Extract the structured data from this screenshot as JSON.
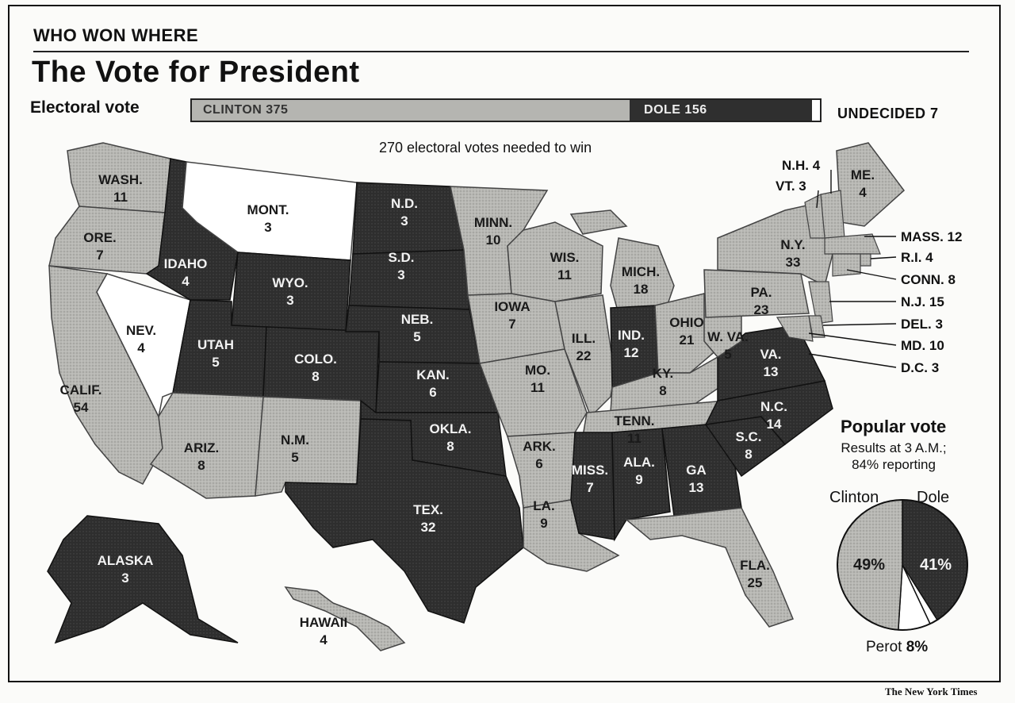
{
  "header": {
    "kicker": "WHO WON WHERE",
    "title": "The Vote for President"
  },
  "electoral_vote": {
    "label": "Electoral vote",
    "needed_note": "270 electoral votes needed to win",
    "clinton_label": "CLINTON 375",
    "dole_label": "DOLE 156",
    "undecided_label": "UNDECIDED 7",
    "clinton_votes": 375,
    "dole_votes": 156,
    "undecided_votes": 7,
    "colors": {
      "clinton": "#b5b5b1",
      "dole": "#2f2f2f",
      "undecided": "#ffffff"
    }
  },
  "states": [
    {
      "id": "wa",
      "label": "WASH.",
      "ev": "11",
      "winner": "clinton"
    },
    {
      "id": "or",
      "label": "ORE.",
      "ev": "7",
      "winner": "clinton"
    },
    {
      "id": "ca",
      "label": "CALIF.",
      "ev": "54",
      "winner": "clinton"
    },
    {
      "id": "nv",
      "label": "NEV.",
      "ev": "4",
      "winner": "undecided"
    },
    {
      "id": "id",
      "label": "IDAHO",
      "ev": "4",
      "winner": "dole"
    },
    {
      "id": "mt",
      "label": "MONT.",
      "ev": "3",
      "winner": "undecided"
    },
    {
      "id": "wy",
      "label": "WYO.",
      "ev": "3",
      "winner": "dole"
    },
    {
      "id": "ut",
      "label": "UTAH",
      "ev": "5",
      "winner": "dole"
    },
    {
      "id": "co",
      "label": "COLO.",
      "ev": "8",
      "winner": "dole"
    },
    {
      "id": "az",
      "label": "ARIZ.",
      "ev": "8",
      "winner": "clinton"
    },
    {
      "id": "nm",
      "label": "N.M.",
      "ev": "5",
      "winner": "clinton"
    },
    {
      "id": "nd",
      "label": "N.D.",
      "ev": "3",
      "winner": "dole"
    },
    {
      "id": "sd",
      "label": "S.D.",
      "ev": "3",
      "winner": "dole"
    },
    {
      "id": "ne",
      "label": "NEB.",
      "ev": "5",
      "winner": "dole"
    },
    {
      "id": "ks",
      "label": "KAN.",
      "ev": "6",
      "winner": "dole"
    },
    {
      "id": "ok",
      "label": "OKLA.",
      "ev": "8",
      "winner": "dole"
    },
    {
      "id": "tx",
      "label": "TEX.",
      "ev": "32",
      "winner": "dole"
    },
    {
      "id": "mn",
      "label": "MINN.",
      "ev": "10",
      "winner": "clinton"
    },
    {
      "id": "ia",
      "label": "IOWA",
      "ev": "7",
      "winner": "clinton"
    },
    {
      "id": "mo",
      "label": "MO.",
      "ev": "11",
      "winner": "clinton"
    },
    {
      "id": "ar",
      "label": "ARK.",
      "ev": "6",
      "winner": "clinton"
    },
    {
      "id": "la",
      "label": "LA.",
      "ev": "9",
      "winner": "clinton"
    },
    {
      "id": "wi",
      "label": "WIS.",
      "ev": "11",
      "winner": "clinton"
    },
    {
      "id": "il",
      "label": "ILL.",
      "ev": "22",
      "winner": "clinton"
    },
    {
      "id": "mi",
      "label": "MICH.",
      "ev": "18",
      "winner": "clinton"
    },
    {
      "id": "in",
      "label": "IND.",
      "ev": "12",
      "winner": "dole"
    },
    {
      "id": "oh",
      "label": "OHIO",
      "ev": "21",
      "winner": "clinton"
    },
    {
      "id": "ky",
      "label": "KY.",
      "ev": "8",
      "winner": "clinton"
    },
    {
      "id": "tn",
      "label": "TENN.",
      "ev": "11",
      "winner": "clinton"
    },
    {
      "id": "ms",
      "label": "MISS.",
      "ev": "7",
      "winner": "dole"
    },
    {
      "id": "al",
      "label": "ALA.",
      "ev": "9",
      "winner": "dole"
    },
    {
      "id": "ga",
      "label": "GA",
      "ev": "13",
      "winner": "dole"
    },
    {
      "id": "fl",
      "label": "FLA.",
      "ev": "25",
      "winner": "clinton"
    },
    {
      "id": "sc",
      "label": "S.C.",
      "ev": "8",
      "winner": "dole"
    },
    {
      "id": "nc",
      "label": "N.C.",
      "ev": "14",
      "winner": "dole"
    },
    {
      "id": "va",
      "label": "VA.",
      "ev": "13",
      "winner": "dole"
    },
    {
      "id": "wv",
      "label": "W. VA.",
      "ev": "5",
      "winner": "clinton"
    },
    {
      "id": "pa",
      "label": "PA.",
      "ev": "23",
      "winner": "clinton"
    },
    {
      "id": "ny",
      "label": "N.Y.",
      "ev": "33",
      "winner": "clinton"
    },
    {
      "id": "me",
      "label": "ME.",
      "ev": "4",
      "winner": "clinton"
    },
    {
      "id": "ak",
      "label": "ALASKA",
      "ev": "3",
      "winner": "dole"
    },
    {
      "id": "hi",
      "label": "HAWAII",
      "ev": "4",
      "winner": "clinton"
    }
  ],
  "callouts": [
    {
      "id": "nh",
      "text": "N.H. 4",
      "winner": "clinton"
    },
    {
      "id": "vt",
      "text": "VT. 3",
      "winner": "clinton"
    },
    {
      "id": "ma",
      "text": "MASS. 12",
      "winner": "clinton"
    },
    {
      "id": "ri",
      "text": "R.I. 4",
      "winner": "clinton"
    },
    {
      "id": "ct",
      "text": "CONN. 8",
      "winner": "clinton"
    },
    {
      "id": "nj",
      "text": "N.J. 15",
      "winner": "clinton"
    },
    {
      "id": "de",
      "text": "DEL. 3",
      "winner": "clinton"
    },
    {
      "id": "md",
      "text": "MD. 10",
      "winner": "clinton"
    },
    {
      "id": "dc",
      "text": "D.C. 3",
      "winner": "clinton"
    }
  ],
  "popular_vote": {
    "title": "Popular vote",
    "subtitle_line1": "Results at 3 A.M.;",
    "subtitle_line2": "84% reporting",
    "clinton_name": "Clinton",
    "dole_name": "Dole",
    "perot_name": "Perot",
    "clinton_pct_label": "49%",
    "dole_pct_label": "41%",
    "perot_pct_label": "8%",
    "shares": {
      "clinton": 49,
      "dole": 41,
      "perot": 8,
      "other": 2
    }
  },
  "credit": "The New York Times"
}
